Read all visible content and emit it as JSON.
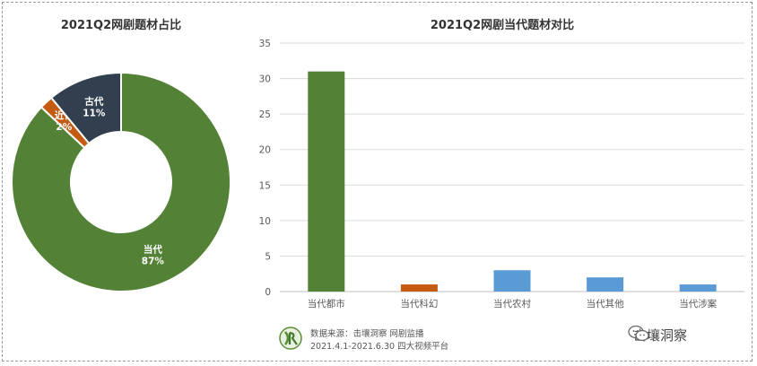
{
  "chart_data": [
    {
      "type": "pie",
      "title": "2021Q2网剧题材占比",
      "categories": [
        "当代",
        "近代",
        "古代"
      ],
      "values": [
        87,
        2,
        11
      ],
      "labels": [
        {
          "name": "当代",
          "pct": "87%"
        },
        {
          "name": "近代",
          "pct": "2%"
        },
        {
          "name": "古代",
          "pct": "11%"
        }
      ],
      "colors": [
        "#538135",
        "#c55a11",
        "#323f4f"
      ],
      "donut": true
    },
    {
      "type": "bar",
      "title": "2021Q2网剧当代题材对比",
      "categories": [
        "当代都市",
        "当代科幻",
        "当代农村",
        "当代其他",
        "当代涉案"
      ],
      "values": [
        31,
        1,
        3,
        2,
        1
      ],
      "colors": [
        "#538135",
        "#c55a11",
        "#5b9bd5",
        "#5b9bd5",
        "#5b9bd5"
      ],
      "ylim": [
        0,
        35
      ],
      "yticks": [
        0,
        5,
        10,
        15,
        20,
        25,
        30,
        35
      ],
      "grid": true,
      "legend": "none"
    }
  ],
  "footer": {
    "line1": "数据来源：击壤洞察 网剧监播",
    "line2": "2021.4.1-2021.6.30 四大视频平台"
  },
  "brand": {
    "name": "击壤洞察"
  }
}
